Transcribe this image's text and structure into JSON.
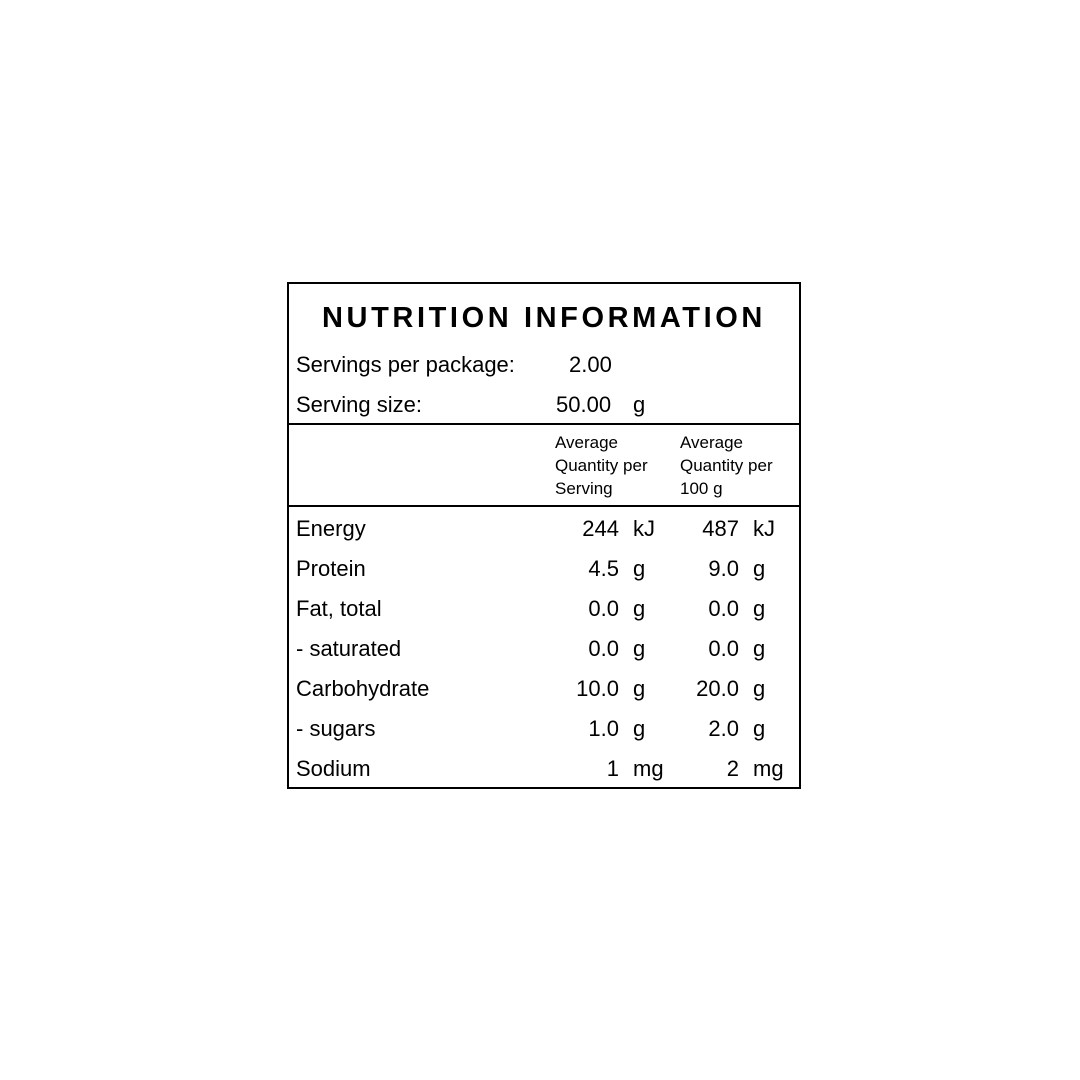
{
  "title": "NUTRITION INFORMATION",
  "servings_per_package": {
    "label": "Servings per package:",
    "value": "2.00"
  },
  "serving_size": {
    "label": "Serving size:",
    "value": "50.00",
    "unit": "g"
  },
  "columns": {
    "per_serving": [
      "Average",
      "Quantity per",
      "Serving"
    ],
    "per_100g": [
      "Average",
      "Quantity per",
      "100 g"
    ]
  },
  "rows": [
    {
      "name": "Energy",
      "serving": "244",
      "serving_unit": "kJ",
      "per100": "487",
      "per100_unit": "kJ"
    },
    {
      "name": "Protein",
      "serving": "4.5",
      "serving_unit": "g",
      "per100": "9.0",
      "per100_unit": "g"
    },
    {
      "name": "Fat, total",
      "serving": "0.0",
      "serving_unit": "g",
      "per100": "0.0",
      "per100_unit": "g"
    },
    {
      "name": "- saturated",
      "serving": "0.0",
      "serving_unit": "g",
      "per100": "0.0",
      "per100_unit": "g"
    },
    {
      "name": "Carbohydrate",
      "serving": "10.0",
      "serving_unit": "g",
      "per100": "20.0",
      "per100_unit": "g"
    },
    {
      "name": "- sugars",
      "serving": "1.0",
      "serving_unit": "g",
      "per100": "2.0",
      "per100_unit": "g"
    },
    {
      "name": "Sodium",
      "serving": "1",
      "serving_unit": "mg",
      "per100": "2",
      "per100_unit": "mg"
    }
  ]
}
